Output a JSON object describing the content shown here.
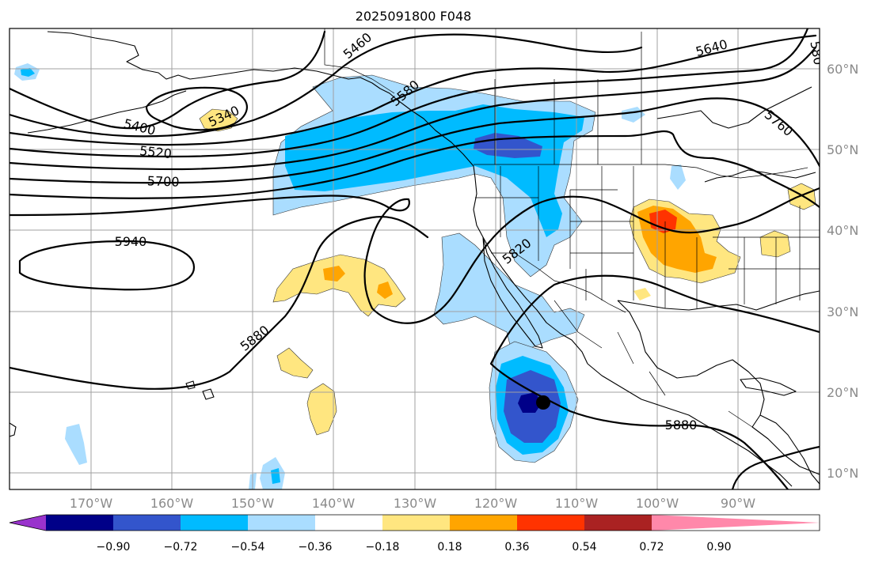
{
  "title": "2025091800 F048",
  "map": {
    "projection": "PlateCarree",
    "lon_range": [
      -180,
      -80
    ],
    "lat_range": [
      8,
      65
    ],
    "lon_labels": [
      "170°W",
      "160°W",
      "150°W",
      "140°W",
      "130°W",
      "120°W",
      "110°W",
      "100°W",
      "90°W"
    ],
    "lat_labels": [
      "60°N",
      "50°N",
      "40°N",
      "30°N",
      "20°N",
      "10°N"
    ],
    "contour_color": "#000000",
    "contour_labels": [
      "5460",
      "5580",
      "5400",
      "5340",
      "5520",
      "5700",
      "5940",
      "5880",
      "5820",
      "5880",
      "5640",
      "5760",
      "580"
    ],
    "cyclone_marker": "storm-center-dot"
  },
  "colorbar": {
    "ticks": [
      "−0.90",
      "−0.72",
      "−0.54",
      "−0.36",
      "−0.18",
      "0.18",
      "0.36",
      "0.54",
      "0.72",
      "0.90"
    ],
    "colors": [
      "#9933cc",
      "#000088",
      "#3355cc",
      "#00bbff",
      "#aaddff",
      "#ffffff",
      "#ffe680",
      "#ffa500",
      "#ff3300",
      "#aa2222",
      "#ff88aa"
    ],
    "extend": "both"
  }
}
